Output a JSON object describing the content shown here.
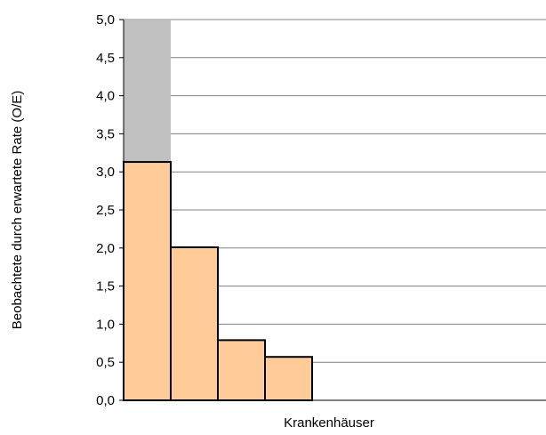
{
  "chart_data": {
    "type": "bar",
    "title": "",
    "xlabel": "Krankenhäuser",
    "ylabel": "Beobachtete durch erwartete Rate (O/E)",
    "ylim": [
      0,
      5
    ],
    "yticks": [
      "0,0",
      "0,5",
      "1,0",
      "1,5",
      "2,0",
      "2,5",
      "3,0",
      "3,5",
      "4,0",
      "4,5",
      "5,0"
    ],
    "ytick_values": [
      0,
      0.5,
      1,
      1.5,
      2,
      2.5,
      3,
      3.5,
      4,
      4.5,
      5
    ],
    "grid": true,
    "categories": [
      "",
      "",
      "",
      ""
    ],
    "values": [
      3.13,
      2.01,
      0.79,
      0.57
    ],
    "overflow_band": {
      "bar_index": 0,
      "from": 3.13,
      "to": 5.0
    },
    "colors": {
      "bar_fill": "#FFCC99",
      "bar_stroke": "#000000",
      "overflow_fill": "#C0C0C0",
      "grid": "#808080",
      "axis": "#000000"
    }
  }
}
